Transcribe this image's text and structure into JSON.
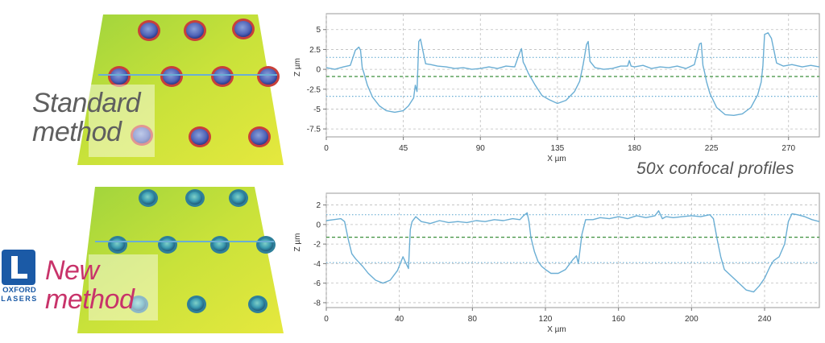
{
  "labels": {
    "standard_method": [
      "Standard",
      "method"
    ],
    "new_method": [
      "New",
      "method"
    ],
    "annotation": "50x confocal profiles",
    "logo_line1": "OXFORD",
    "logo_line2": "LASERS"
  },
  "colors": {
    "profile_line": "#6aaed4",
    "reference_dotted": "#6aaed4",
    "mean_dashed": "#3d8f3d",
    "grid": "#bdbdbd",
    "standard_text": "#5f5f5f",
    "new_text": "#c8336a",
    "logo_blue": "#1b5aa6"
  },
  "chart_data": [
    {
      "type": "line",
      "panel": "standard",
      "xlabel": "X µm",
      "ylabel": "Z µm",
      "xlim": [
        0,
        288
      ],
      "ylim": [
        -8.5,
        7
      ],
      "xticks": [
        0,
        45,
        90,
        135,
        180,
        225,
        270
      ],
      "xtick_labels": [
        "0",
        "45",
        "90",
        "135",
        "180",
        "225",
        "270"
      ],
      "yticks": [
        5,
        2.5,
        0,
        -2.5,
        -5,
        -7.5
      ],
      "ytick_labels": [
        "5",
        "2.5",
        "0",
        "-2.5",
        "-5",
        "-7.5"
      ],
      "grid": true,
      "reference_lines": [
        {
          "y": 1.5,
          "style": "dotted"
        },
        {
          "y": -0.9,
          "style": "dashed"
        },
        {
          "y": -3.4,
          "style": "dotted"
        }
      ],
      "series": [
        {
          "x": [
            0,
            5,
            10,
            14,
            17,
            19,
            20,
            21,
            22,
            24,
            27,
            31,
            35,
            40,
            45,
            48,
            51,
            52,
            53,
            54,
            55,
            58,
            61,
            65,
            70,
            75,
            80,
            85,
            90,
            95,
            100,
            105,
            110,
            113,
            114,
            115,
            116,
            118,
            122,
            126,
            130,
            135,
            140,
            145,
            148,
            150,
            152,
            153,
            154,
            157,
            162,
            167,
            172,
            176,
            177,
            178,
            180,
            185,
            190,
            195,
            200,
            205,
            210,
            215,
            218,
            219,
            220,
            221,
            222,
            224,
            228,
            233,
            238,
            243,
            248,
            252,
            254,
            255,
            256,
            258,
            260,
            263,
            267,
            272,
            278,
            283,
            288
          ],
          "y": [
            0.2,
            0.0,
            0.3,
            0.5,
            2.4,
            2.8,
            2.4,
            0.2,
            -0.5,
            -2.0,
            -3.5,
            -4.6,
            -5.2,
            -5.4,
            -5.2,
            -4.6,
            -3.6,
            -2.0,
            -2.8,
            3.5,
            3.8,
            0.7,
            0.6,
            0.4,
            0.3,
            0.1,
            0.2,
            0.0,
            0.1,
            0.3,
            0.1,
            0.4,
            0.3,
            2.1,
            2.6,
            0.9,
            0.5,
            -0.5,
            -2.0,
            -3.3,
            -3.8,
            -4.3,
            -3.9,
            -2.8,
            -1.5,
            0.6,
            3.1,
            3.5,
            1.0,
            0.2,
            0.0,
            0.1,
            0.4,
            0.4,
            1.1,
            0.4,
            0.3,
            0.5,
            0.1,
            0.3,
            0.2,
            0.4,
            0.1,
            0.6,
            3.2,
            3.3,
            0.5,
            -0.4,
            -1.5,
            -3.0,
            -4.8,
            -5.7,
            -5.8,
            -5.6,
            -4.8,
            -3.2,
            -1.6,
            0.4,
            4.4,
            4.6,
            3.9,
            0.8,
            0.4,
            0.6,
            0.3,
            0.5,
            0.3
          ]
        }
      ]
    },
    {
      "type": "line",
      "panel": "new",
      "xlabel": "X µm",
      "ylabel": "Z µm",
      "xlim": [
        0,
        270
      ],
      "ylim": [
        -8.5,
        3.2
      ],
      "xticks": [
        0,
        40,
        80,
        120,
        160,
        200,
        240
      ],
      "xtick_labels": [
        "0",
        "40",
        "80",
        "120",
        "160",
        "200",
        "240"
      ],
      "yticks": [
        2,
        0,
        -2,
        -4,
        -6,
        -8
      ],
      "ytick_labels": [
        "2",
        "0",
        "-2",
        "-4",
        "-6",
        "-8"
      ],
      "grid": true,
      "reference_lines": [
        {
          "y": 1.0,
          "style": "dotted"
        },
        {
          "y": -1.3,
          "style": "dashed"
        },
        {
          "y": -3.9,
          "style": "dotted"
        }
      ],
      "series": [
        {
          "x": [
            0,
            4,
            8,
            10,
            12,
            14,
            16,
            18,
            20,
            23,
            27,
            31,
            35,
            39,
            42,
            45,
            46,
            47,
            49,
            52,
            57,
            62,
            67,
            72,
            77,
            82,
            87,
            92,
            97,
            102,
            106,
            108,
            110,
            111,
            112,
            114,
            116,
            118,
            120,
            123,
            127,
            131,
            135,
            137,
            138,
            140,
            142,
            146,
            150,
            155,
            160,
            165,
            170,
            175,
            180,
            182,
            184,
            186,
            190,
            195,
            200,
            205,
            210,
            212,
            214,
            216,
            218,
            222,
            226,
            230,
            234,
            237,
            240,
            243,
            245,
            248,
            251,
            253,
            255,
            258,
            262,
            266,
            270
          ],
          "y": [
            0.4,
            0.5,
            0.6,
            0.3,
            -1.5,
            -3.0,
            -3.5,
            -3.9,
            -4.3,
            -5.0,
            -5.7,
            -6.0,
            -5.7,
            -4.7,
            -3.3,
            -4.5,
            -0.5,
            0.3,
            0.8,
            0.3,
            0.1,
            0.4,
            0.2,
            0.3,
            0.2,
            0.4,
            0.3,
            0.5,
            0.4,
            0.6,
            0.5,
            0.9,
            1.2,
            0.3,
            -1.3,
            -2.8,
            -3.8,
            -4.3,
            -4.6,
            -5.0,
            -5.0,
            -4.6,
            -3.6,
            -3.2,
            -4.0,
            -1.0,
            0.5,
            0.5,
            0.7,
            0.6,
            0.8,
            0.6,
            0.9,
            0.7,
            0.9,
            1.4,
            0.6,
            0.8,
            0.7,
            0.8,
            0.9,
            0.8,
            1.0,
            0.6,
            -1.5,
            -3.3,
            -4.6,
            -5.3,
            -6.0,
            -6.7,
            -6.9,
            -6.3,
            -5.5,
            -4.3,
            -3.7,
            -3.3,
            -2.0,
            0.3,
            1.1,
            1.0,
            0.8,
            0.5,
            0.3
          ]
        }
      ]
    }
  ]
}
